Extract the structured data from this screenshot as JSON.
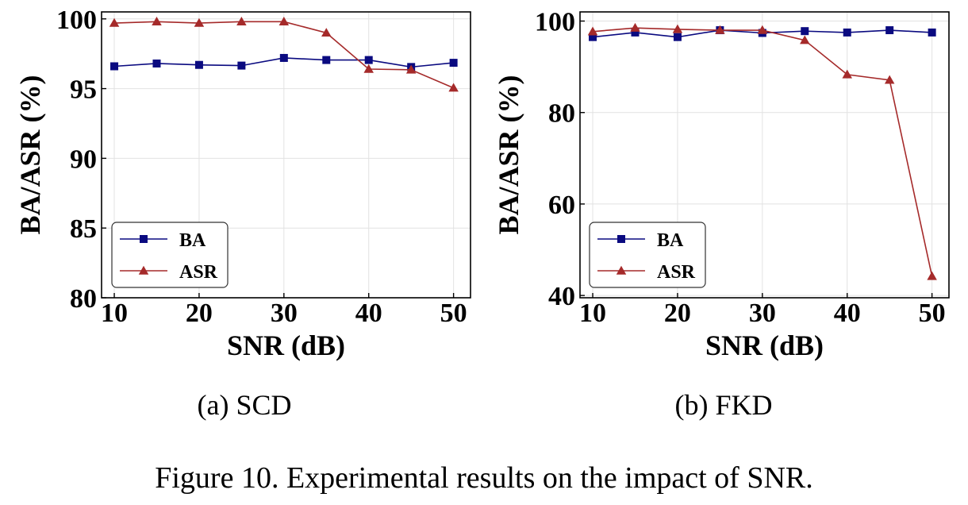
{
  "caption": "Figure 10. Experimental results on the impact of SNR.",
  "chart_data": [
    {
      "type": "line",
      "subcaption": "(a)  SCD",
      "xlabel": "SNR (dB)",
      "ylabel": "BA/ASR (%)",
      "x": [
        10,
        15,
        20,
        25,
        30,
        35,
        40,
        45,
        50
      ],
      "xticks": [
        10,
        20,
        30,
        40,
        50
      ],
      "yticks": [
        80,
        85,
        90,
        95,
        100
      ],
      "xlim": [
        8.5,
        52
      ],
      "ylim": [
        80,
        100.5
      ],
      "grid": true,
      "legend_position": "lower-left",
      "series": [
        {
          "name": "BA",
          "color": "#0a0a80",
          "marker": "square",
          "values": [
            96.6,
            96.8,
            96.7,
            96.65,
            97.2,
            97.05,
            97.05,
            96.55,
            96.85
          ]
        },
        {
          "name": "ASR",
          "color": "#a52a2a",
          "marker": "triangle",
          "values": [
            99.7,
            99.8,
            99.7,
            99.8,
            99.8,
            99.0,
            96.4,
            96.35,
            95.05
          ]
        }
      ]
    },
    {
      "type": "line",
      "subcaption": "(b)  FKD",
      "xlabel": "SNR (dB)",
      "ylabel": "BA/ASR (%)",
      "x": [
        10,
        15,
        20,
        25,
        30,
        35,
        40,
        45,
        50
      ],
      "xticks": [
        10,
        20,
        30,
        40,
        50
      ],
      "yticks": [
        40,
        60,
        80,
        100
      ],
      "xlim": [
        8.5,
        52
      ],
      "ylim": [
        39.5,
        102
      ],
      "grid": true,
      "legend_position": "lower-left",
      "series": [
        {
          "name": "BA",
          "color": "#0a0a80",
          "marker": "square",
          "values": [
            96.5,
            97.5,
            96.5,
            98.0,
            97.4,
            97.8,
            97.5,
            98.0,
            97.5
          ]
        },
        {
          "name": "ASR",
          "color": "#a52a2a",
          "marker": "triangle",
          "values": [
            97.7,
            98.5,
            98.2,
            98.0,
            98.0,
            95.8,
            88.3,
            87.1,
            44.2
          ]
        }
      ]
    }
  ]
}
